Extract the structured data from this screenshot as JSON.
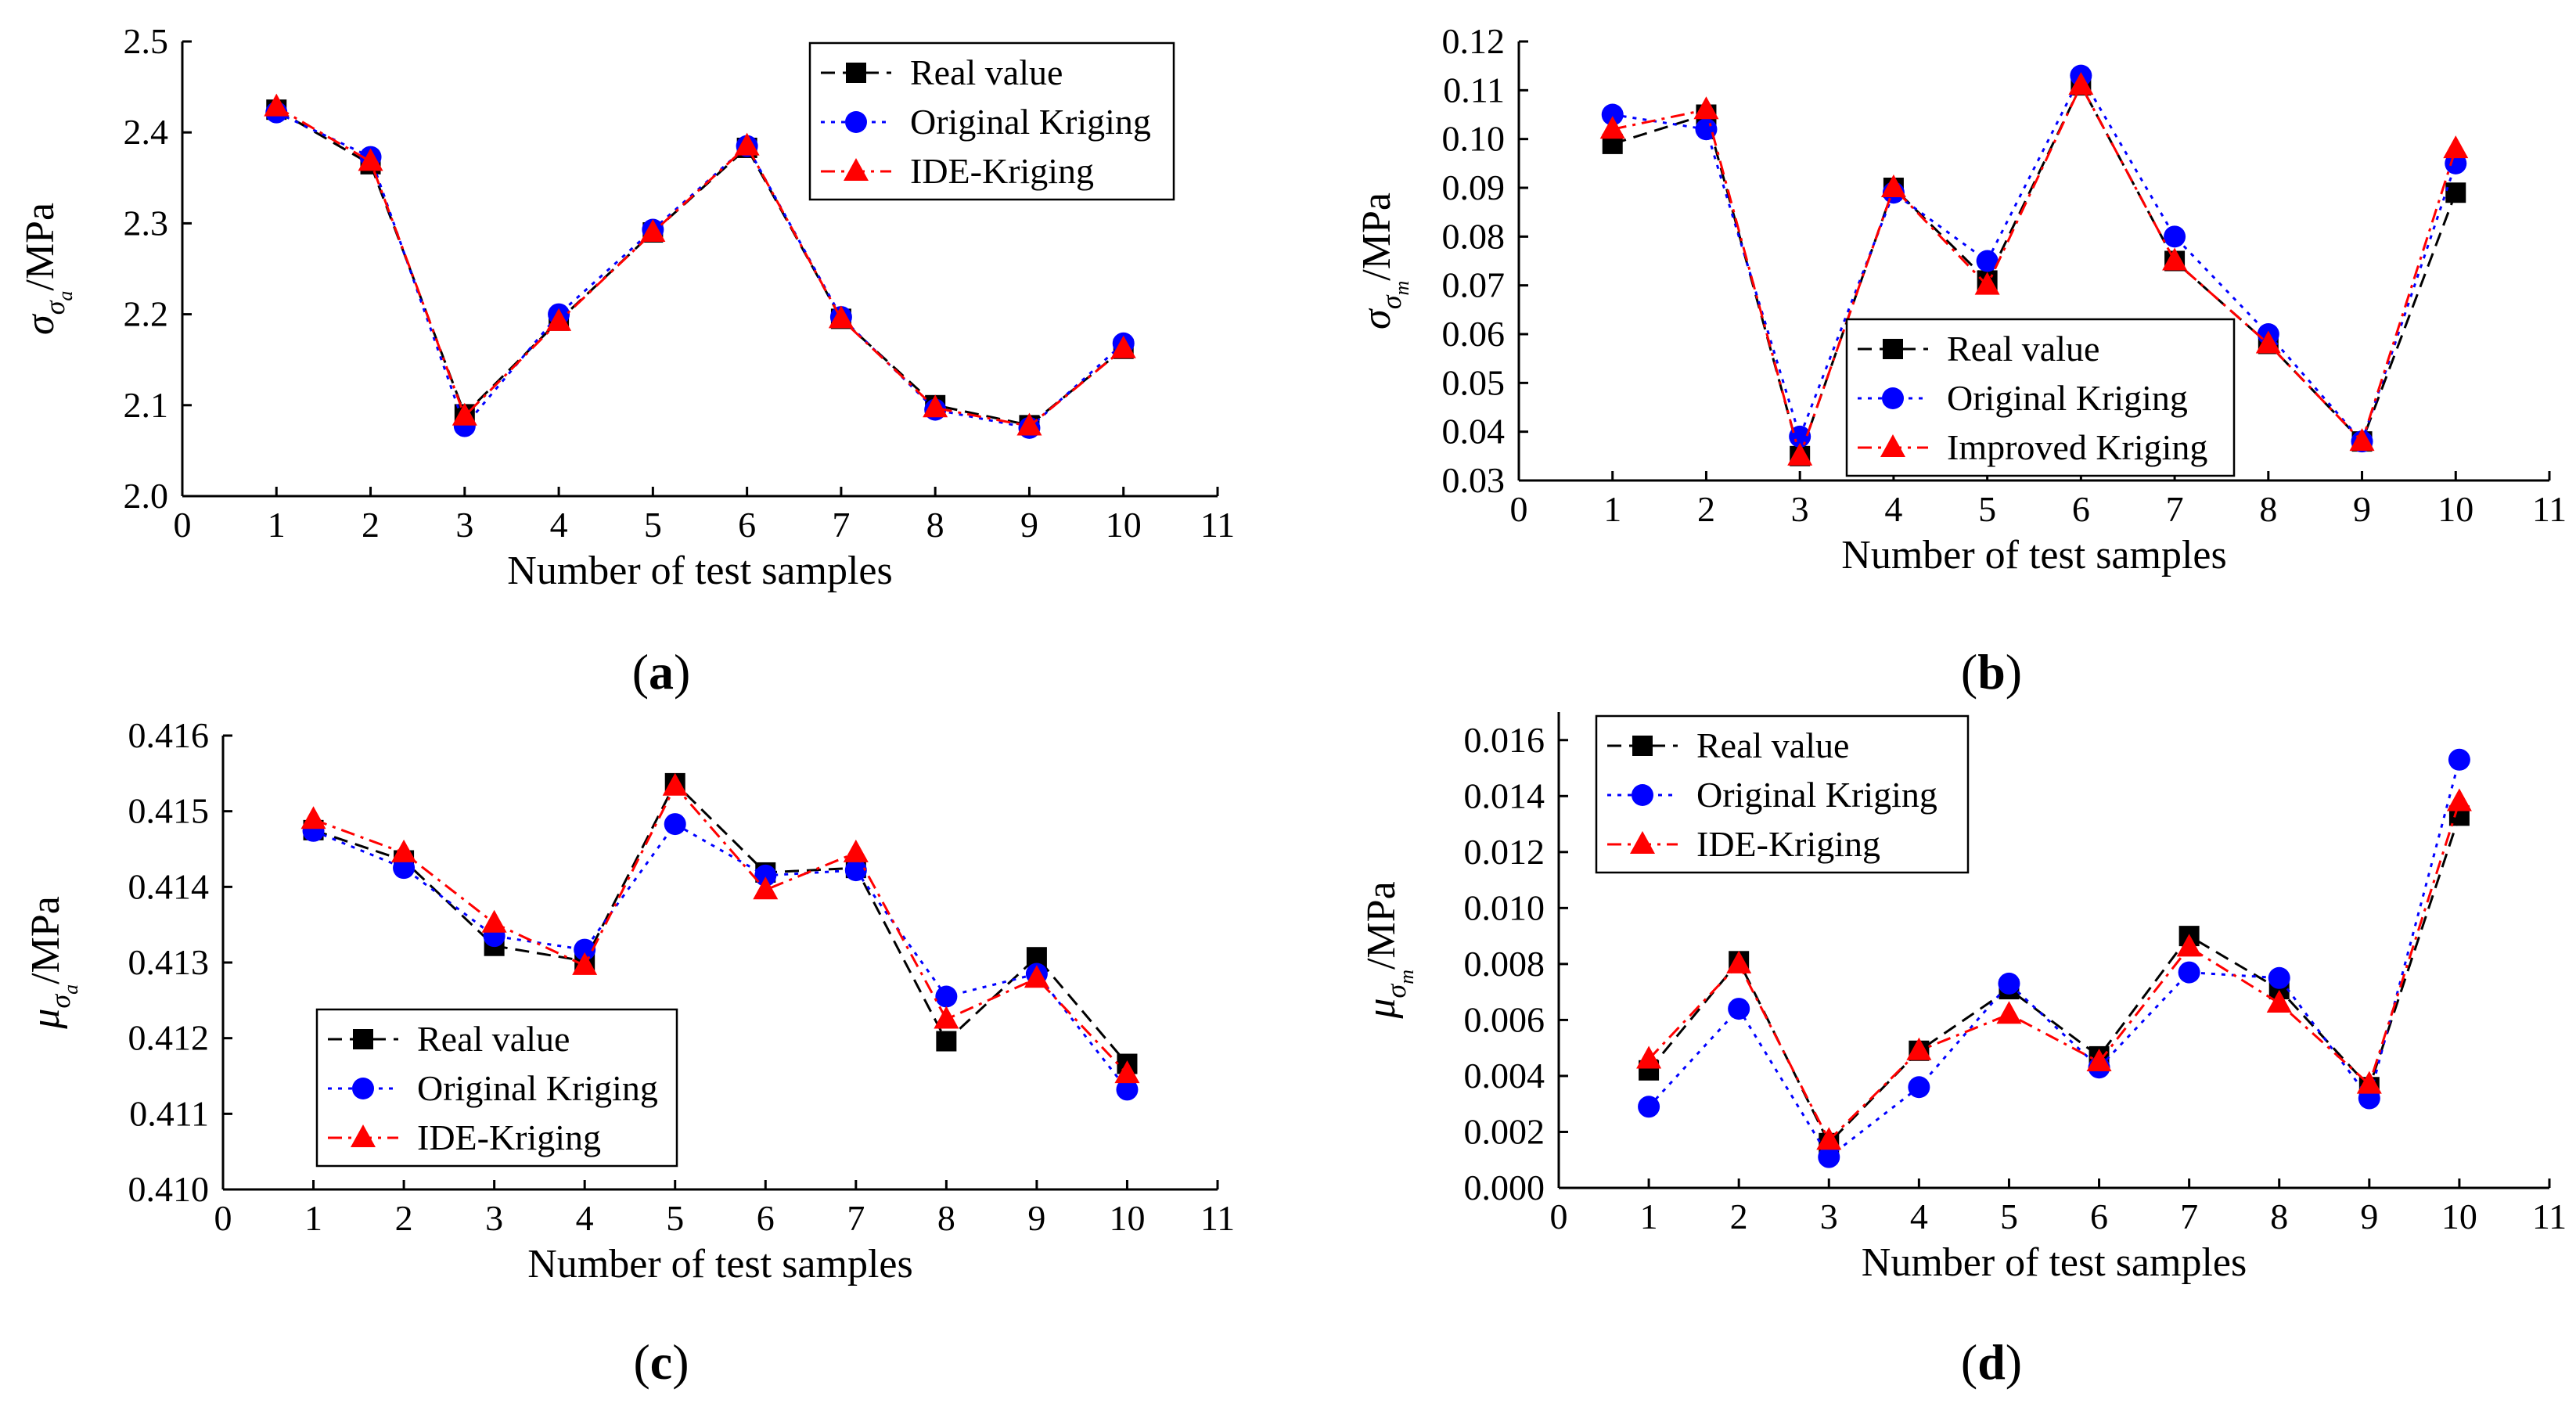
{
  "chart_data": [
    {
      "id": "a",
      "type": "line",
      "panel_label": "a",
      "ylabel_symbol": "σ",
      "ylabel_sub1": "σ",
      "ylabel_sub2": "a",
      "ylabel_unit": "/MPa",
      "xlabel": "Number of test samples",
      "xlim": [
        0,
        11
      ],
      "ylim": [
        2.0,
        2.5
      ],
      "xticks": [
        "0",
        "1",
        "2",
        "3",
        "4",
        "5",
        "6",
        "7",
        "8",
        "9",
        "10",
        "11"
      ],
      "yticks": [
        "2.0",
        "2.1",
        "2.2",
        "2.3",
        "2.4",
        "2.5"
      ],
      "legend_position": "top-right",
      "x": [
        1,
        2,
        3,
        4,
        5,
        6,
        7,
        8,
        9,
        10
      ],
      "series": [
        {
          "name": "Real value",
          "color": "#000000",
          "marker": "square",
          "dash": "dashed",
          "values": [
            2.425,
            2.365,
            2.09,
            2.193,
            2.29,
            2.383,
            2.195,
            2.1,
            2.078,
            2.162
          ]
        },
        {
          "name": "Original Kriging",
          "color": "#0000ff",
          "marker": "circle",
          "dash": "dotted",
          "values": [
            2.422,
            2.373,
            2.077,
            2.2,
            2.293,
            2.385,
            2.197,
            2.095,
            2.075,
            2.168
          ]
        },
        {
          "name": "IDE-Kriging",
          "color": "#ff0000",
          "marker": "triangle",
          "dash": "dashdot",
          "values": [
            2.428,
            2.368,
            2.088,
            2.192,
            2.29,
            2.385,
            2.195,
            2.097,
            2.077,
            2.162
          ]
        }
      ]
    },
    {
      "id": "b",
      "type": "line",
      "panel_label": "b",
      "ylabel_symbol": "σ",
      "ylabel_sub1": "σ",
      "ylabel_sub2": "m",
      "ylabel_unit": "/MPa",
      "xlabel": "Number of test samples",
      "xlim": [
        0,
        11
      ],
      "ylim": [
        0.03,
        0.12
      ],
      "xticks": [
        "0",
        "1",
        "2",
        "3",
        "4",
        "5",
        "6",
        "7",
        "8",
        "9",
        "10",
        "11"
      ],
      "yticks": [
        "0.03",
        "0.04",
        "0.05",
        "0.06",
        "0.07",
        "0.08",
        "0.09",
        "0.10",
        "0.11",
        "0.12"
      ],
      "legend_position": "bottom-right",
      "x": [
        1,
        2,
        3,
        4,
        5,
        6,
        7,
        8,
        9,
        10
      ],
      "series": [
        {
          "name": "Real value",
          "color": "#000000",
          "marker": "square",
          "dash": "dashed",
          "values": [
            0.099,
            0.105,
            0.035,
            0.09,
            0.071,
            0.111,
            0.075,
            0.058,
            0.038,
            0.089
          ]
        },
        {
          "name": "Original Kriging",
          "color": "#0000ff",
          "marker": "circle",
          "dash": "dotted",
          "values": [
            0.105,
            0.102,
            0.039,
            0.089,
            0.075,
            0.113,
            0.08,
            0.06,
            0.038,
            0.095
          ]
        },
        {
          "name": "Improved Kriging",
          "color": "#ff0000",
          "marker": "triangle",
          "dash": "dashdot",
          "values": [
            0.102,
            0.106,
            0.035,
            0.09,
            0.07,
            0.111,
            0.075,
            0.058,
            0.038,
            0.098
          ]
        }
      ]
    },
    {
      "id": "c",
      "type": "line",
      "panel_label": "c",
      "ylabel_symbol": "μ",
      "ylabel_sub1": "σ",
      "ylabel_sub2": "a",
      "ylabel_unit": "/MPa",
      "xlabel": "Number of test samples",
      "xlim": [
        0,
        11
      ],
      "ylim": [
        0.41,
        0.416
      ],
      "xticks": [
        "0",
        "1",
        "2",
        "3",
        "4",
        "5",
        "6",
        "7",
        "8",
        "9",
        "10",
        "11"
      ],
      "yticks": [
        "0.410",
        "0.411",
        "0.412",
        "0.413",
        "0.414",
        "0.415",
        "0.416"
      ],
      "legend_position": "bottom-left",
      "x": [
        1,
        2,
        3,
        4,
        5,
        6,
        7,
        8,
        9,
        10
      ],
      "series": [
        {
          "name": "Real value",
          "color": "#000000",
          "marker": "square",
          "dash": "dashed",
          "values": [
            0.41475,
            0.41435,
            0.41322,
            0.41302,
            0.41537,
            0.41419,
            0.41425,
            0.41196,
            0.41307,
            0.41166
          ]
        },
        {
          "name": "Original Kriging",
          "color": "#0000ff",
          "marker": "circle",
          "dash": "dotted",
          "values": [
            0.41474,
            0.41425,
            0.41335,
            0.41317,
            0.41483,
            0.41415,
            0.41422,
            0.41255,
            0.41285,
            0.41132
          ]
        },
        {
          "name": "IDE-Kriging",
          "color": "#ff0000",
          "marker": "triangle",
          "dash": "dashdot",
          "values": [
            0.41489,
            0.41445,
            0.41352,
            0.41296,
            0.41533,
            0.41396,
            0.41445,
            0.41225,
            0.41279,
            0.41153
          ]
        }
      ]
    },
    {
      "id": "d",
      "type": "line",
      "panel_label": "d",
      "ylabel_symbol": "μ",
      "ylabel_sub1": "σ",
      "ylabel_sub2": "m",
      "ylabel_unit": "/MPa",
      "xlabel": "Number of test samples",
      "xlim": [
        0,
        11
      ],
      "ylim": [
        0.0,
        0.017
      ],
      "xticks": [
        "0",
        "1",
        "2",
        "3",
        "4",
        "5",
        "6",
        "7",
        "8",
        "9",
        "10",
        "11"
      ],
      "yticks": [
        "0.000",
        "0.002",
        "0.004",
        "0.006",
        "0.008",
        "0.010",
        "0.012",
        "0.014",
        "0.016"
      ],
      "legend_position": "top-left",
      "x": [
        1,
        2,
        3,
        4,
        5,
        6,
        7,
        8,
        9,
        10
      ],
      "series": [
        {
          "name": "Real value",
          "color": "#000000",
          "marker": "square",
          "dash": "dashed",
          "values": [
            0.0042,
            0.0081,
            0.0016,
            0.0049,
            0.0071,
            0.0047,
            0.009,
            0.0071,
            0.0036,
            0.0133
          ]
        },
        {
          "name": "Original Kriging",
          "color": "#0000ff",
          "marker": "circle",
          "dash": "dotted",
          "values": [
            0.0029,
            0.0064,
            0.0011,
            0.0036,
            0.0073,
            0.0043,
            0.0077,
            0.0075,
            0.0032,
            0.0153
          ]
        },
        {
          "name": "IDE-Kriging",
          "color": "#ff0000",
          "marker": "triangle",
          "dash": "dashdot",
          "values": [
            0.0046,
            0.008,
            0.0017,
            0.0049,
            0.0062,
            0.0045,
            0.0086,
            0.0066,
            0.0037,
            0.0138
          ]
        }
      ]
    }
  ]
}
